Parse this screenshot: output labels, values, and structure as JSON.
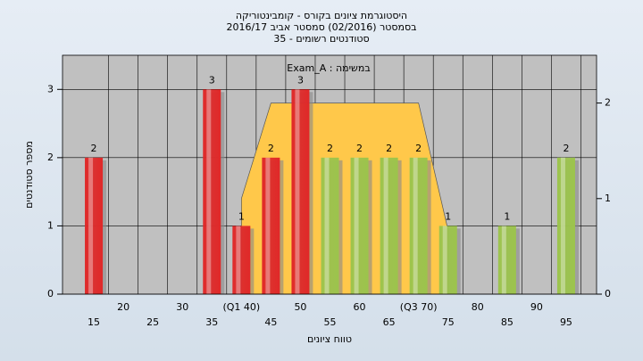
{
  "chart_data": {
    "type": "bar",
    "title": "היסטוגרמת ציונים בקורס - קומבינטוריקה",
    "subtitle": "בסמסטר  (02/2016)  סמסטר אביב 2016/17",
    "subtitle2": "סטודנטים רשומים - 35",
    "annotation": "Exam_A : במשימה",
    "xlabel": "טווח ציונים",
    "ylabel": "מספר סטודנטים",
    "categories": [
      "15",
      "20",
      "25",
      "30",
      "35",
      "(Q1 40)",
      "45",
      "50",
      "55",
      "60",
      "65",
      "(Q3 70)",
      "75",
      "80",
      "85",
      "90",
      "95"
    ],
    "values": [
      2,
      0,
      0,
      0,
      3,
      1,
      2,
      3,
      2,
      2,
      2,
      2,
      1,
      0,
      1,
      0,
      2
    ],
    "colors": [
      "#e02828",
      "#e02828",
      "#e02828",
      "#e02828",
      "#e02828",
      "#e02828",
      "#e02828",
      "#e02828",
      "#9cc44c",
      "#9cc44c",
      "#9cc44c",
      "#9cc44c",
      "#9cc44c",
      "#9cc44c",
      "#9cc44c",
      "#9cc44c",
      "#9cc44c"
    ],
    "ylim": [
      0,
      3.5
    ],
    "yticks": [
      0,
      1,
      2,
      3
    ],
    "y2lim": [
      0,
      2.5
    ],
    "y2ticks": [
      0,
      1,
      2
    ],
    "grid": true,
    "series": [
      {
        "type": "area",
        "axis": "y2",
        "color": "#ffc84a",
        "values": [
          null,
          null,
          null,
          null,
          null,
          1,
          2,
          null,
          null,
          null,
          null,
          2,
          0.67,
          null,
          null,
          null,
          null
        ]
      }
    ]
  }
}
